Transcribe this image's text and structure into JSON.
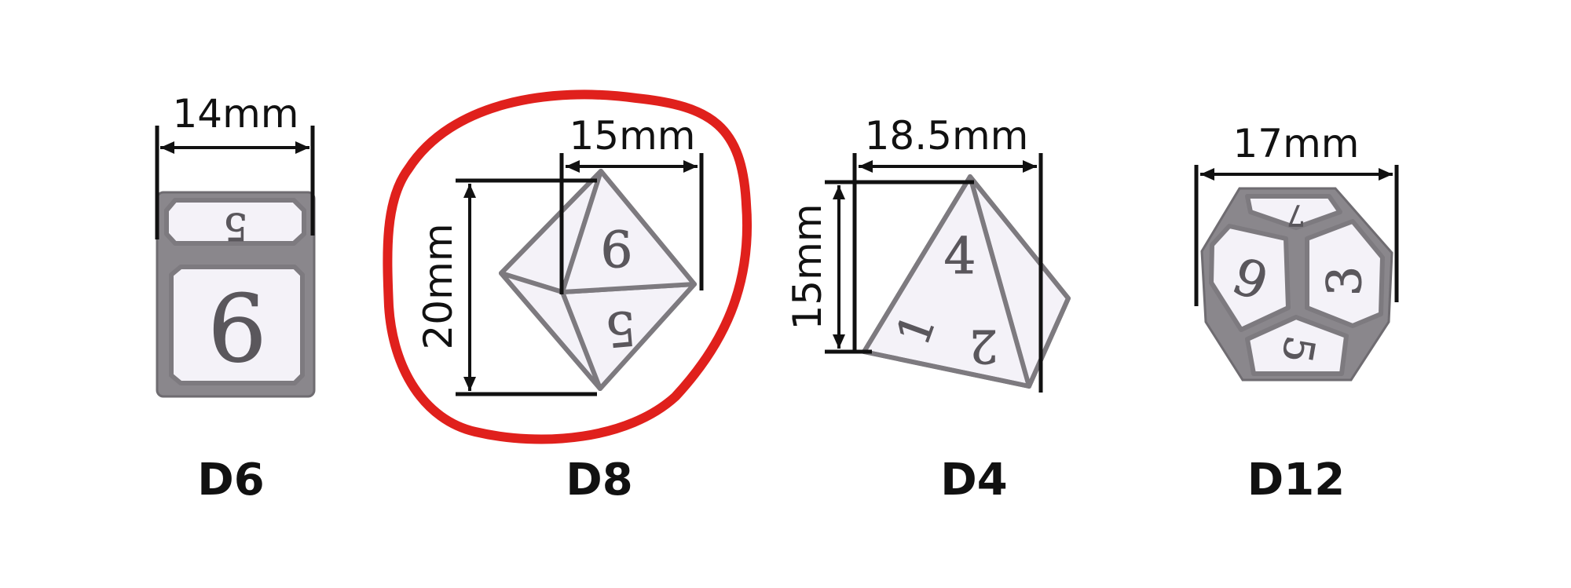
{
  "dice": [
    {
      "id": "d6",
      "label": "D6",
      "dimensions": [
        "14mm"
      ],
      "face_numbers": [
        "6",
        "5"
      ]
    },
    {
      "id": "d8",
      "label": "D8",
      "dimensions": [
        "15mm",
        "20mm"
      ],
      "face_numbers": [
        "6",
        "5"
      ],
      "highlighted": true
    },
    {
      "id": "d4",
      "label": "D4",
      "dimensions": [
        "18.5mm",
        "15mm"
      ],
      "face_numbers": [
        "4",
        "1",
        "2"
      ]
    },
    {
      "id": "d12",
      "label": "D12",
      "dimensions": [
        "17mm"
      ],
      "face_numbers": [
        "9",
        "3",
        "5",
        "7"
      ]
    }
  ],
  "colors": {
    "highlight": "#e0201c",
    "die_edge": "#7d7a7f",
    "die_face": "#f4f2f8",
    "text": "#111111"
  }
}
